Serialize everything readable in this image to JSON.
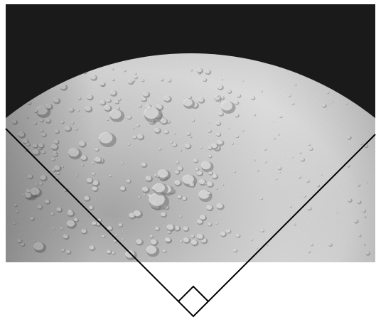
{
  "figure": {
    "colors": {
      "space": "#1a1a1a",
      "surface_light": "#e0e0e0",
      "surface_mid": "#bdbdbd",
      "surface_dark": "#8a8a8a",
      "crater_shadow": "#6e6e6e",
      "crater_highlight": "#f4f4f4",
      "frame_line": "#000000",
      "background": "#ffffff"
    },
    "overlay": {
      "shape": "right-angle wedge",
      "right_angle_marker": true
    }
  }
}
